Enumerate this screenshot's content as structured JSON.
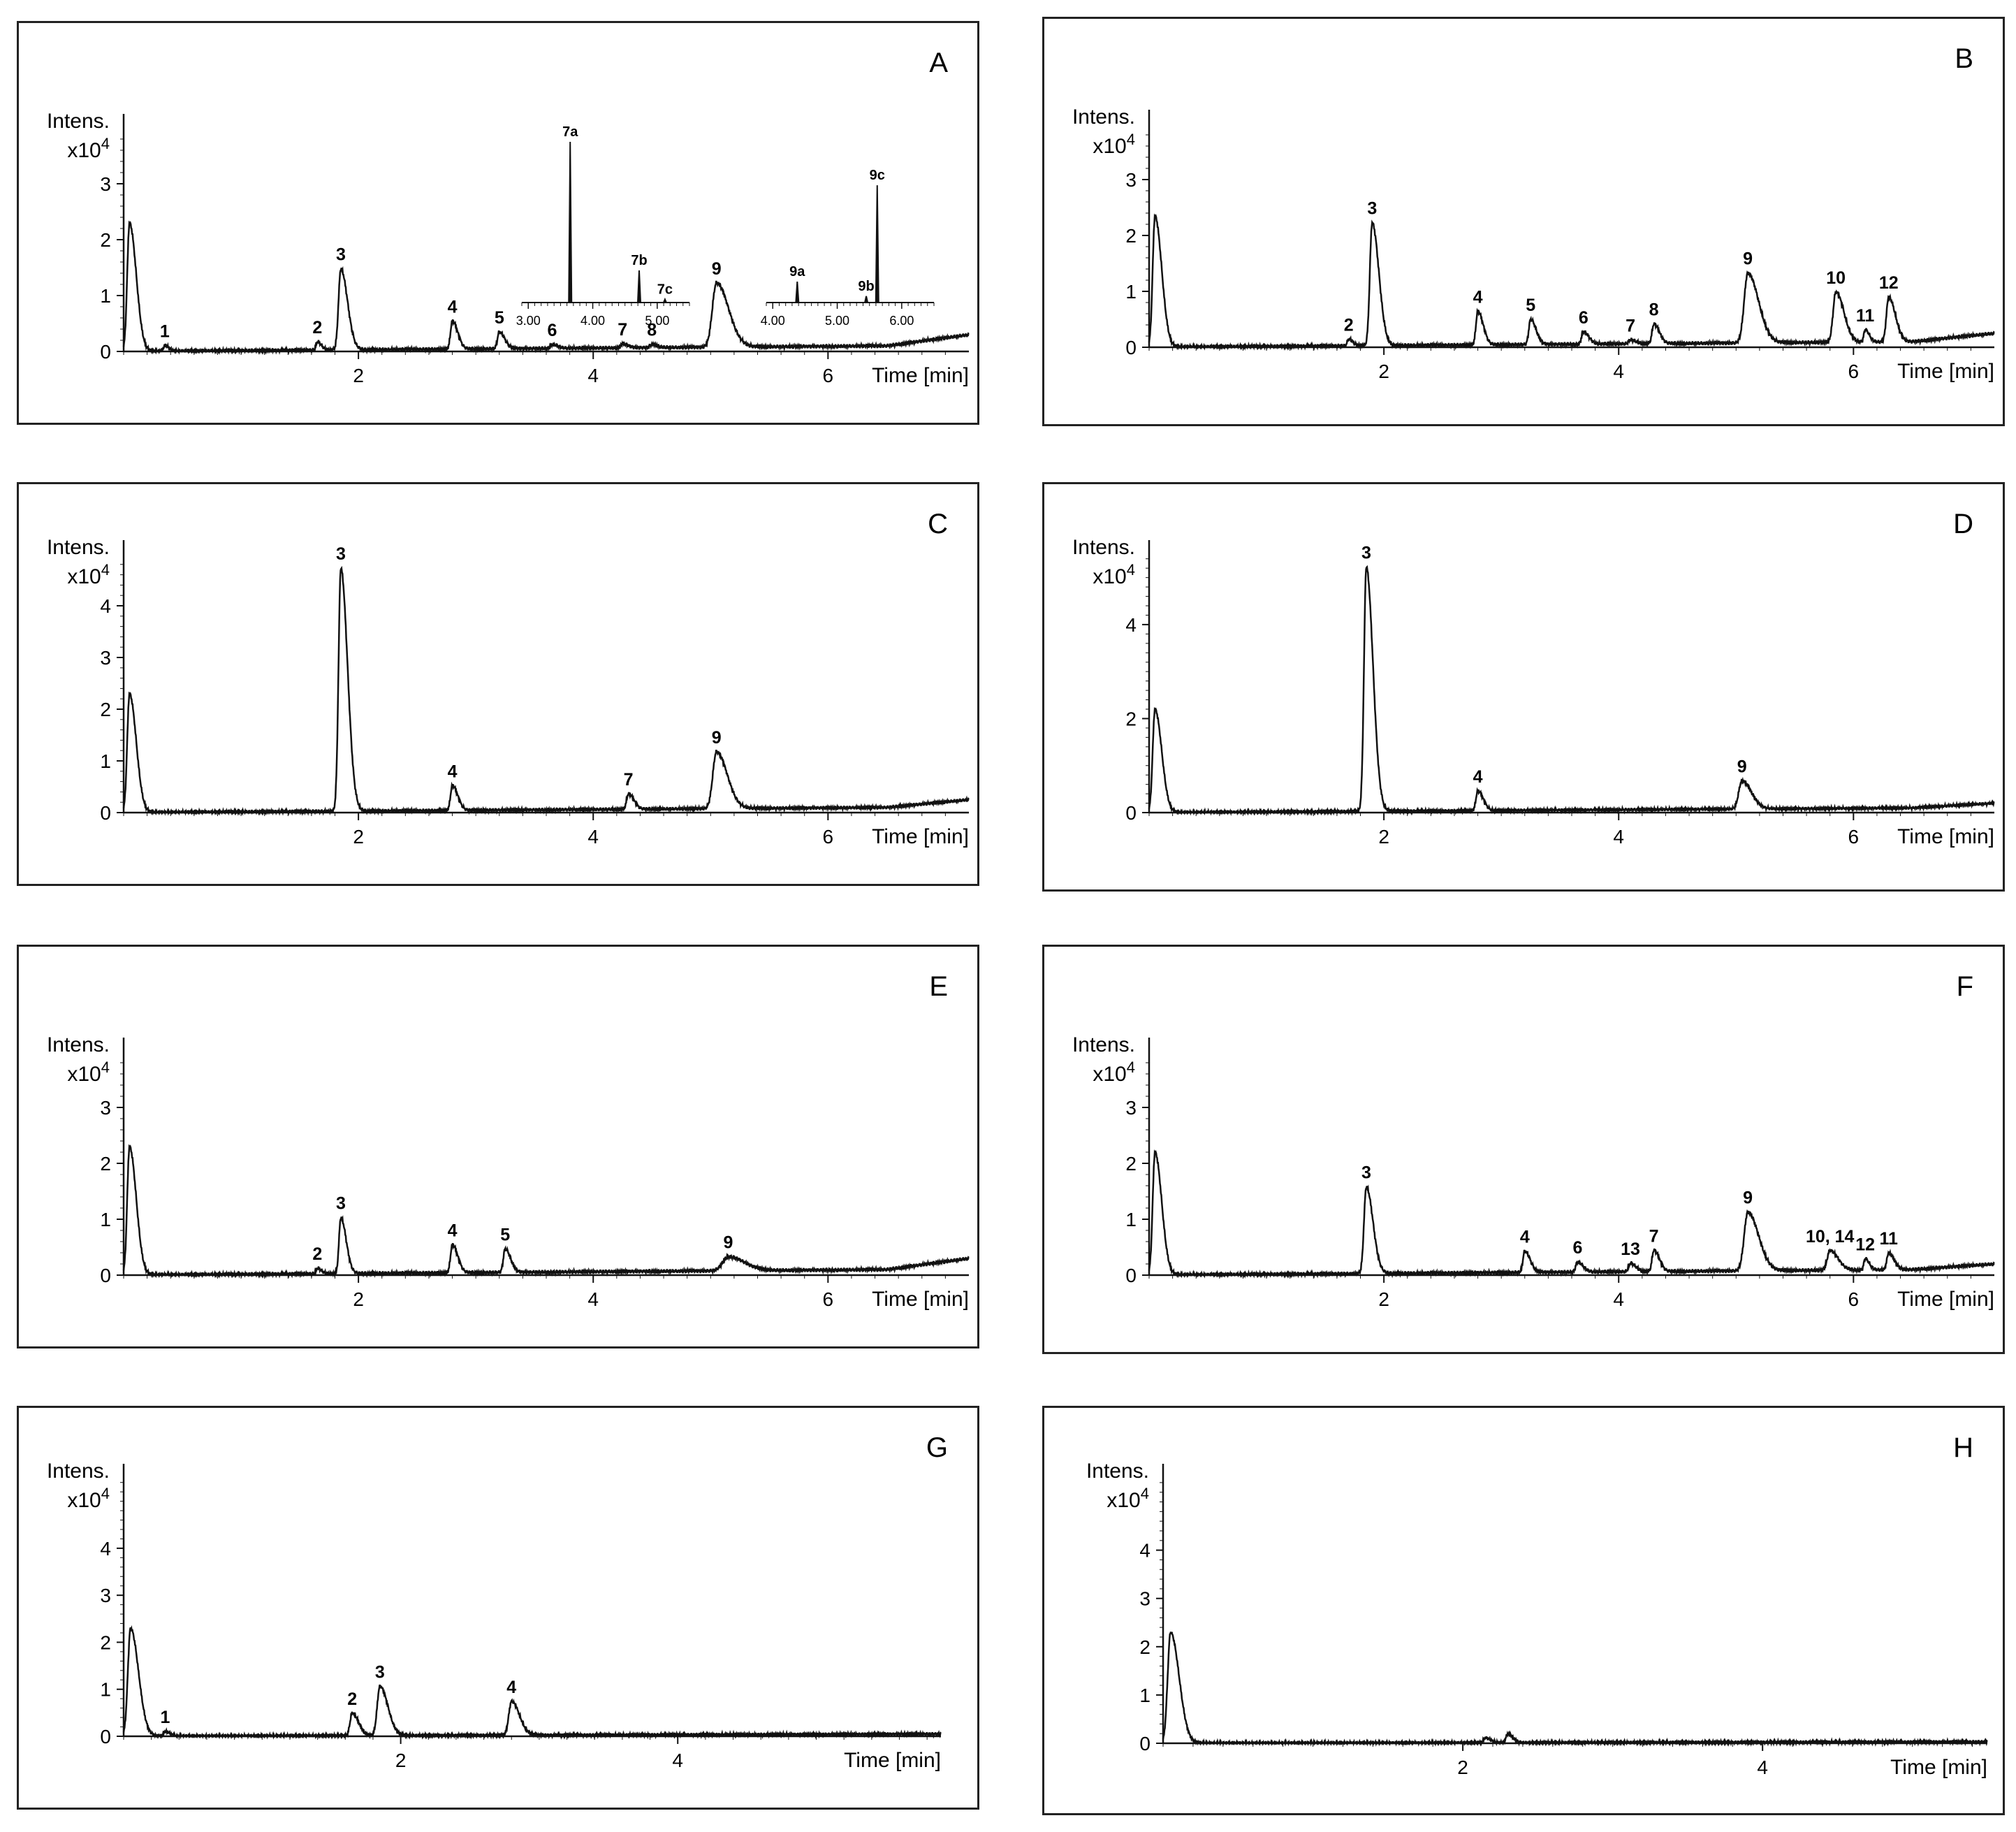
{
  "figure": {
    "y_unit": "Intens.",
    "y_scale": "x10",
    "y_exponent": "4",
    "x_label": "Time [min]"
  },
  "chart_data": [
    {
      "type": "line",
      "panel": "A",
      "xlim": [
        0,
        7.2
      ],
      "ylim": [
        0,
        4
      ],
      "xticks": [
        2,
        4,
        6
      ],
      "yticks": [
        0,
        1,
        2,
        3
      ],
      "baseline": [
        [
          0,
          0
        ],
        [
          6.5,
          0.1
        ],
        [
          7.2,
          0.3
        ]
      ],
      "peaks": [
        {
          "label": null,
          "t": 0.05,
          "h": 2.3,
          "w": 0.05
        },
        {
          "label": "1",
          "t": 0.35,
          "h": 0.1,
          "w": 0.03
        },
        {
          "label": "2",
          "t": 1.65,
          "h": 0.15,
          "w": 0.03
        },
        {
          "label": "3",
          "t": 1.85,
          "h": 1.45,
          "w": 0.05
        },
        {
          "label": "4",
          "t": 2.8,
          "h": 0.5,
          "w": 0.04
        },
        {
          "label": "5",
          "t": 3.2,
          "h": 0.3,
          "w": 0.04
        },
        {
          "label": "6",
          "t": 3.65,
          "h": 0.07,
          "w": 0.04
        },
        {
          "label": "7",
          "t": 4.25,
          "h": 0.07,
          "w": 0.04
        },
        {
          "label": "8",
          "t": 4.5,
          "h": 0.06,
          "w": 0.04
        },
        {
          "label": "9",
          "t": 5.05,
          "h": 1.15,
          "w": 0.09
        }
      ],
      "insets": [
        {
          "xticks": [
            "3.00",
            "4.00",
            "5.00"
          ],
          "peaks": [
            {
              "label": "7a",
              "t": 3.65,
              "h": 1.0
            },
            {
              "label": "7b",
              "t": 4.72,
              "h": 0.2
            },
            {
              "label": "7c",
              "t": 5.12,
              "h": 0.02
            }
          ],
          "xlim": [
            2.9,
            5.5
          ]
        },
        {
          "xticks": [
            "4.00",
            "5.00",
            "6.00"
          ],
          "peaks": [
            {
              "label": "9a",
              "t": 4.38,
              "h": 0.13
            },
            {
              "label": "9b",
              "t": 5.45,
              "h": 0.04
            },
            {
              "label": "9c",
              "t": 5.62,
              "h": 0.73
            }
          ],
          "xlim": [
            3.9,
            6.5
          ]
        }
      ]
    },
    {
      "type": "line",
      "panel": "B",
      "xlim": [
        0,
        7.2
      ],
      "ylim": [
        0,
        4
      ],
      "xticks": [
        2,
        4,
        6
      ],
      "yticks": [
        0,
        1,
        2,
        3
      ],
      "baseline": [
        [
          0,
          0
        ],
        [
          6.5,
          0.1
        ],
        [
          7.2,
          0.25
        ]
      ],
      "peaks": [
        {
          "label": null,
          "t": 0.05,
          "h": 2.35,
          "w": 0.05
        },
        {
          "label": "2",
          "t": 1.7,
          "h": 0.12,
          "w": 0.03
        },
        {
          "label": "3",
          "t": 1.9,
          "h": 2.2,
          "w": 0.05
        },
        {
          "label": "4",
          "t": 2.8,
          "h": 0.6,
          "w": 0.04
        },
        {
          "label": "5",
          "t": 3.25,
          "h": 0.45,
          "w": 0.04
        },
        {
          "label": "6",
          "t": 3.7,
          "h": 0.22,
          "w": 0.04
        },
        {
          "label": "7",
          "t": 4.1,
          "h": 0.07,
          "w": 0.04
        },
        {
          "label": "8",
          "t": 4.3,
          "h": 0.35,
          "w": 0.04
        },
        {
          "label": "9",
          "t": 5.1,
          "h": 1.25,
          "w": 0.08
        },
        {
          "label": "10",
          "t": 5.85,
          "h": 0.9,
          "w": 0.06
        },
        {
          "label": "11",
          "t": 6.1,
          "h": 0.22,
          "w": 0.03
        },
        {
          "label": "12",
          "t": 6.3,
          "h": 0.8,
          "w": 0.05
        }
      ]
    },
    {
      "type": "line",
      "panel": "C",
      "xlim": [
        0,
        7.2
      ],
      "ylim": [
        0,
        5
      ],
      "xticks": [
        2,
        4,
        6
      ],
      "yticks": [
        0,
        1,
        2,
        3,
        4
      ],
      "baseline": [
        [
          0,
          0
        ],
        [
          6.5,
          0.1
        ],
        [
          7.2,
          0.25
        ]
      ],
      "peaks": [
        {
          "label": null,
          "t": 0.05,
          "h": 2.3,
          "w": 0.05
        },
        {
          "label": "3",
          "t": 1.85,
          "h": 4.7,
          "w": 0.05
        },
        {
          "label": "4",
          "t": 2.8,
          "h": 0.48,
          "w": 0.04
        },
        {
          "label": "7",
          "t": 4.3,
          "h": 0.3,
          "w": 0.04
        },
        {
          "label": "9",
          "t": 5.05,
          "h": 1.1,
          "w": 0.08
        }
      ]
    },
    {
      "type": "line",
      "panel": "D",
      "xlim": [
        0,
        7.2
      ],
      "ylim": [
        0,
        5.5
      ],
      "xticks": [
        2,
        4,
        6
      ],
      "yticks": [
        0,
        2,
        4
      ],
      "baseline": [
        [
          0,
          0
        ],
        [
          6.5,
          0.1
        ],
        [
          7.2,
          0.2
        ]
      ],
      "peaks": [
        {
          "label": null,
          "t": 0.05,
          "h": 2.2,
          "w": 0.05
        },
        {
          "label": "3",
          "t": 1.85,
          "h": 5.2,
          "w": 0.05
        },
        {
          "label": "4",
          "t": 2.8,
          "h": 0.42,
          "w": 0.04
        },
        {
          "label": "9",
          "t": 5.05,
          "h": 0.6,
          "w": 0.07
        }
      ]
    },
    {
      "type": "line",
      "panel": "E",
      "xlim": [
        0,
        7.2
      ],
      "ylim": [
        0,
        4
      ],
      "xticks": [
        2,
        4,
        6
      ],
      "yticks": [
        0,
        1,
        2,
        3
      ],
      "baseline": [
        [
          0,
          0
        ],
        [
          6.5,
          0.1
        ],
        [
          7.2,
          0.3
        ]
      ],
      "peaks": [
        {
          "label": null,
          "t": 0.05,
          "h": 2.3,
          "w": 0.05
        },
        {
          "label": "2",
          "t": 1.65,
          "h": 0.1,
          "w": 0.03
        },
        {
          "label": "3",
          "t": 1.85,
          "h": 1.0,
          "w": 0.04
        },
        {
          "label": "4",
          "t": 2.8,
          "h": 0.5,
          "w": 0.04
        },
        {
          "label": "5",
          "t": 3.25,
          "h": 0.42,
          "w": 0.04
        },
        {
          "label": "9",
          "t": 5.15,
          "h": 0.25,
          "w": 0.12
        }
      ]
    },
    {
      "type": "line",
      "panel": "F",
      "xlim": [
        0,
        7.2
      ],
      "ylim": [
        0,
        4
      ],
      "xticks": [
        2,
        4,
        6
      ],
      "yticks": [
        0,
        1,
        2,
        3
      ],
      "baseline": [
        [
          0,
          0
        ],
        [
          6.5,
          0.1
        ],
        [
          7.2,
          0.2
        ]
      ],
      "peaks": [
        {
          "label": null,
          "t": 0.05,
          "h": 2.2,
          "w": 0.05
        },
        {
          "label": "3",
          "t": 1.85,
          "h": 1.55,
          "w": 0.05
        },
        {
          "label": "4",
          "t": 3.2,
          "h": 0.38,
          "w": 0.04
        },
        {
          "label": "6",
          "t": 3.65,
          "h": 0.18,
          "w": 0.04
        },
        {
          "label": "13",
          "t": 4.1,
          "h": 0.15,
          "w": 0.04
        },
        {
          "label": "7",
          "t": 4.3,
          "h": 0.38,
          "w": 0.04
        },
        {
          "label": "9",
          "t": 5.1,
          "h": 1.05,
          "w": 0.08
        },
        {
          "label": "10, 14",
          "t": 5.8,
          "h": 0.35,
          "w": 0.06
        },
        {
          "label": "12",
          "t": 6.1,
          "h": 0.2,
          "w": 0.03
        },
        {
          "label": "11",
          "t": 6.3,
          "h": 0.3,
          "w": 0.04
        }
      ]
    },
    {
      "type": "line",
      "panel": "G",
      "xlim": [
        0,
        5.9
      ],
      "ylim": [
        0,
        5.5
      ],
      "xticks": [
        2,
        4
      ],
      "yticks": [
        0,
        1,
        2,
        3,
        4
      ],
      "baseline": [
        [
          0,
          0
        ],
        [
          5.9,
          0.05
        ]
      ],
      "peaks": [
        {
          "label": null,
          "t": 0.05,
          "h": 2.3,
          "w": 0.05
        },
        {
          "label": "1",
          "t": 0.3,
          "h": 0.1,
          "w": 0.03
        },
        {
          "label": "2",
          "t": 1.65,
          "h": 0.48,
          "w": 0.04
        },
        {
          "label": "3",
          "t": 1.85,
          "h": 1.05,
          "w": 0.05
        },
        {
          "label": "4",
          "t": 2.8,
          "h": 0.72,
          "w": 0.05
        }
      ]
    },
    {
      "type": "line",
      "panel": "H",
      "xlim": [
        0,
        5.5
      ],
      "ylim": [
        0,
        5.5
      ],
      "xticks": [
        2,
        4
      ],
      "yticks": [
        0,
        1,
        2,
        3,
        4
      ],
      "baseline": [
        [
          0,
          0
        ],
        [
          5.5,
          0.03
        ]
      ],
      "peaks": [
        {
          "label": null,
          "t": 0.05,
          "h": 2.3,
          "w": 0.05
        },
        {
          "label": null,
          "t": 2.15,
          "h": 0.1,
          "w": 0.03
        },
        {
          "label": null,
          "t": 2.3,
          "h": 0.18,
          "w": 0.03
        }
      ]
    }
  ]
}
